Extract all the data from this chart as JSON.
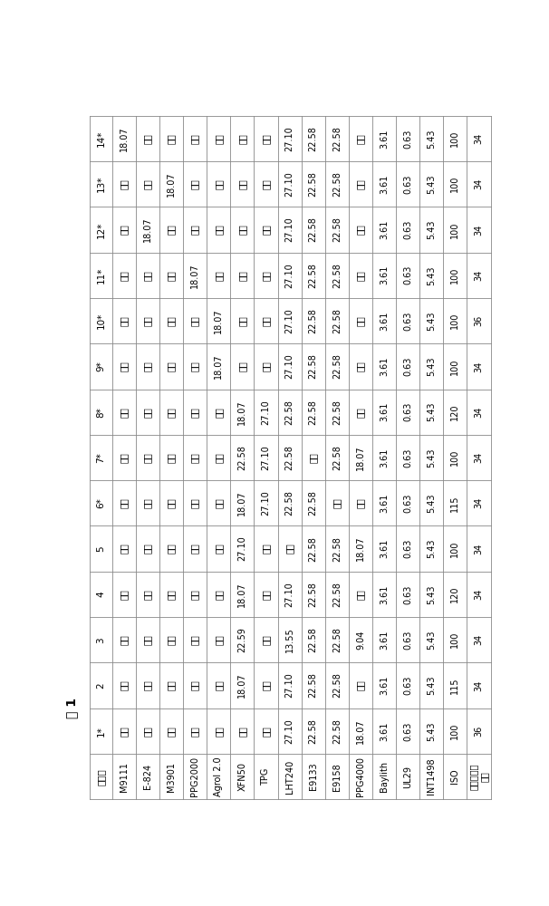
{
  "title": "表 1",
  "bg_color": "#ffffff",
  "border_color": "#888888",
  "text_color": "#000000",
  "empty_val": "：：",
  "row_headers": [
    "14*",
    "13*",
    "12*",
    "11*",
    "10*",
    "9*",
    "8*",
    "7*",
    "6*",
    "5",
    "4",
    "3",
    "2",
    "1*",
    "实施例"
  ],
  "col_headers": [
    "M9111",
    "E-824",
    "M3901",
    "PPG2000",
    "Agrol 2.0",
    "XFN50",
    "TPG",
    "LHT240",
    "E9133",
    "E9158",
    "PPG4000",
    "Baylith",
    "UL29",
    "INT1498",
    "ISO",
    "表面能（达\n因）"
  ],
  "table_data": {
    "14*": [
      "18.07",
      "：：",
      "：：",
      "：：",
      "：：",
      "：：",
      "：：",
      "27.10",
      "22.58",
      "22.58",
      "：：",
      "3.61",
      "0.63",
      "5.43",
      "100",
      "34"
    ],
    "13*": [
      "：：",
      "：：",
      "18.07",
      "：：",
      "：：",
      "：：",
      "：：",
      "27.10",
      "22.58",
      "22.58",
      "：：",
      "3.61",
      "0.63",
      "5.43",
      "100",
      "34"
    ],
    "12*": [
      "：：",
      "18.07",
      "：：",
      "：：",
      "：：",
      "：：",
      "：：",
      "27.10",
      "22.58",
      "22.58",
      "：：",
      "3.61",
      "0.63",
      "5.43",
      "100",
      "34"
    ],
    "11*": [
      "：：",
      "：：",
      "：：",
      "18.07",
      "：：",
      "：：",
      "：：",
      "27.10",
      "22.58",
      "22.58",
      "：：",
      "3.61",
      "0.63",
      "5.43",
      "100",
      "34"
    ],
    "10*": [
      "：：",
      "：：",
      "：：",
      "：：",
      "18.07",
      "：：",
      "：：",
      "27.10",
      "22.58",
      "22.58",
      "：：",
      "3.61",
      "0.63",
      "5.43",
      "100",
      "36"
    ],
    "9*": [
      "：：",
      "：：",
      "：：",
      "：：",
      "18.07",
      "：：",
      "：：",
      "27.10",
      "22.58",
      "22.58",
      "：：",
      "3.61",
      "0.63",
      "5.43",
      "100",
      "34"
    ],
    "8*": [
      "：：",
      "：：",
      "：：",
      "：：",
      "：：",
      "18.07",
      "27.10",
      "22.58",
      "22.58",
      "22.58",
      "：：",
      "3.61",
      "0.63",
      "5.43",
      "120",
      "34"
    ],
    "7*": [
      "：：",
      "：：",
      "：：",
      "：：",
      "：：",
      "22.58",
      "27.10",
      "22.58",
      "：：",
      "22.58",
      "18.07",
      "3.61",
      "0.63",
      "5.43",
      "100",
      "34"
    ],
    "6*": [
      "：：",
      "：：",
      "：：",
      "：：",
      "：：",
      "18.07",
      "27.10",
      "22.58",
      "22.58",
      "：：",
      "：：",
      "3.61",
      "0.63",
      "5.43",
      "115",
      "34"
    ],
    "5": [
      "：：",
      "：：",
      "：：",
      "：：",
      "：：",
      "27.10",
      "：：",
      "：：",
      "22.58",
      "22.58",
      "18.07",
      "3.61",
      "0.63",
      "5.43",
      "100",
      "34"
    ],
    "4": [
      "：：",
      "：：",
      "：：",
      "：：",
      "：：",
      "18.07",
      "：：",
      "27.10",
      "22.58",
      "22.58",
      "：：",
      "3.61",
      "0.63",
      "5.43",
      "120",
      "34"
    ],
    "3": [
      "：：",
      "：：",
      "：：",
      "：：",
      "：：",
      "22.59",
      "：：",
      "13.55",
      "22.58",
      "22.58",
      "9.04",
      "3.61",
      "0.63",
      "5.43",
      "100",
      "34"
    ],
    "2": [
      "：：",
      "：：",
      "：：",
      "：：",
      "：：",
      "18.07",
      "：：",
      "27.10",
      "22.58",
      "22.58",
      "：：",
      "3.61",
      "0.63",
      "5.43",
      "115",
      "34"
    ],
    "1*": [
      "：：",
      "：：",
      "：：",
      "：：",
      "：：",
      "：：",
      "：：",
      "27.10",
      "22.58",
      "22.58",
      "18.07",
      "3.61",
      "0.63",
      "5.43",
      "100",
      "36"
    ],
    "实施例": [
      "M9111",
      "E-824",
      "M3901",
      "PPG2000",
      "Agrol 2.0",
      "XFN50",
      "TPG",
      "LHT240",
      "E9133",
      "E9158",
      "PPG4000",
      "Baylith",
      "UL29",
      "INT1498",
      "ISO",
      "表面能（达\n因）"
    ]
  }
}
